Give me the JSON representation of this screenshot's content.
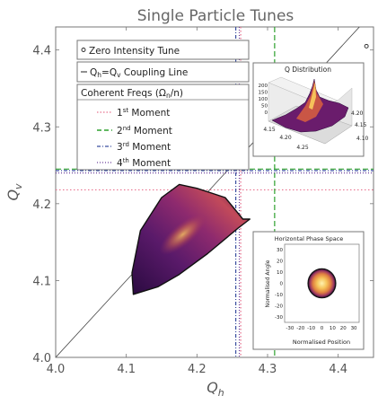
{
  "chart_data": {
    "type": "heatmap",
    "title": "Single Particle Tunes",
    "xlabel": "Q_h",
    "ylabel": "Q_v",
    "xlim": [
      4.0,
      4.45
    ],
    "ylim": [
      4.0,
      4.43
    ],
    "xticks": [
      "4.0",
      "4.1",
      "4.2",
      "4.3",
      "4.4"
    ],
    "yticks": [
      "4.0",
      "4.1",
      "4.2",
      "4.3",
      "4.4"
    ],
    "zero_intensity_tune": {
      "x": 4.44,
      "y": 4.405
    },
    "coupling_line": {
      "x": [
        4.0,
        4.45
      ],
      "y": [
        4.0,
        4.45
      ]
    },
    "moment_lines": [
      {
        "name": "1st Moment",
        "style": "dotted",
        "color": "#e8738f",
        "qh": 4.262,
        "qv": 4.218
      },
      {
        "name": "2nd Moment",
        "style": "dashed",
        "color": "#2ca02c",
        "qh": 4.31,
        "qv": 4.245
      },
      {
        "name": "3rd Moment",
        "style": "dashdot",
        "color": "#3a4fa0",
        "qh": 4.255,
        "qv": 4.243
      },
      {
        "name": "4th Moment",
        "style": "dotted",
        "color": "#6a3d9a",
        "qh": 4.26,
        "qv": 4.24
      }
    ],
    "distribution": {
      "polygon": [
        [
          4.11,
          4.082
        ],
        [
          4.145,
          4.092
        ],
        [
          4.175,
          4.108
        ],
        [
          4.215,
          4.135
        ],
        [
          4.258,
          4.168
        ],
        [
          4.275,
          4.18
        ],
        [
          4.265,
          4.18
        ],
        [
          4.24,
          4.208
        ],
        [
          4.2,
          4.22
        ],
        [
          4.175,
          4.225
        ],
        [
          4.15,
          4.208
        ],
        [
          4.12,
          4.165
        ],
        [
          4.108,
          4.11
        ]
      ],
      "core_center": [
        4.18,
        4.16
      ]
    },
    "legend": {
      "placement": "upper-left",
      "zero_label": "Zero Intensity Tune",
      "coupling_label": "Q",
      "coupling_sub_h": "h",
      "coupling_eq": "=Q",
      "coupling_sub_v": "v",
      "coupling_rest": " Coupling Line",
      "coherent_title_a": "Coherent Freqs (Ω",
      "coherent_title_sub": "n",
      "coherent_title_b": "/n)",
      "m1_num": "1",
      "m1_sup": "st",
      "m1_rest": " Moment",
      "m2_num": "2",
      "m2_sup": "nd",
      "m2_rest": " Moment",
      "m3_num": "3",
      "m3_sup": "rd",
      "m3_rest": " Moment",
      "m4_num": "4",
      "m4_sup": "th",
      "m4_rest": " Moment"
    },
    "inset_q_distribution": {
      "title": "Q Distribution",
      "type": "3d-histogram",
      "zticks": [
        "200",
        "150",
        "100",
        "50",
        "0"
      ],
      "xticks": [
        "4.15",
        "4.20",
        "4.25"
      ],
      "yticks": [
        "4.20",
        "4.15",
        "4.10"
      ]
    },
    "inset_phase_space": {
      "title": "Horizontal Phase Space",
      "type": "scatter-density",
      "xlabel": "Normalised Position",
      "ylabel": "Normalised Angle",
      "xlim": [
        -35,
        35
      ],
      "ylim": [
        -35,
        35
      ],
      "xticks": [
        "-30",
        "-20",
        "-10",
        "0",
        "10",
        "20",
        "30"
      ],
      "yticks": [
        "30",
        "20",
        "10",
        "0",
        "-10",
        "-20",
        "-30"
      ],
      "beam_radius": 13
    }
  }
}
